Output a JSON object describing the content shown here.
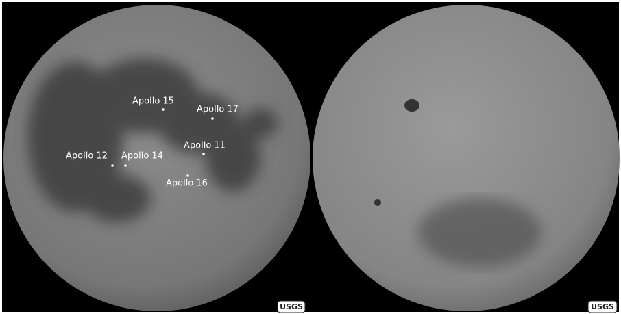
{
  "near_side": {
    "sites": [
      {
        "label": "Apollo 15"
      },
      {
        "label": "Apollo 17"
      },
      {
        "label": "Apollo 11"
      },
      {
        "label": "Apollo 12"
      },
      {
        "label": "Apollo 14"
      },
      {
        "label": "Apollo 16"
      }
    ],
    "credit": "USGS"
  },
  "far_side": {
    "credit": "USGS"
  }
}
